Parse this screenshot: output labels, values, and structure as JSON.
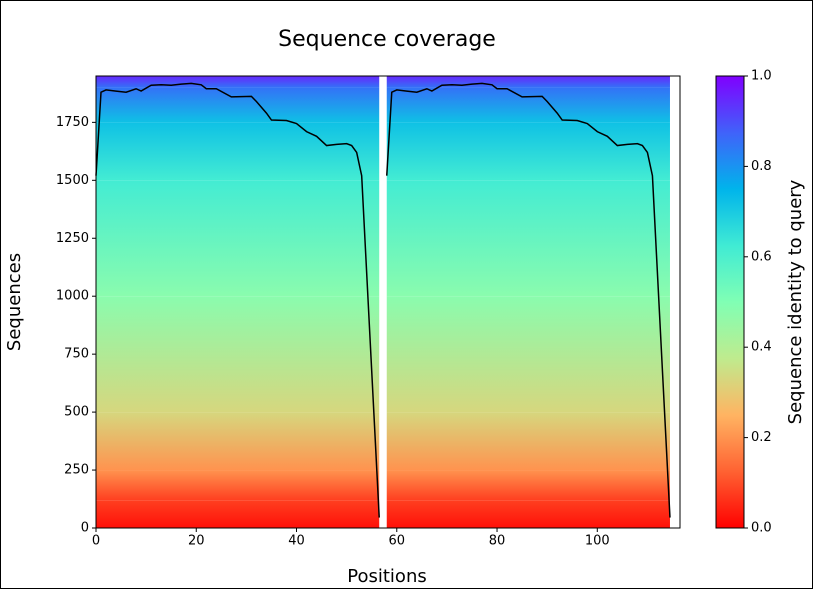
{
  "chart_data": {
    "type": "coverage",
    "title": "Sequence coverage",
    "xlabel": "Positions",
    "ylabel": "Sequences",
    "colorbar_label": "Sequence identity to query",
    "x": [
      0,
      1,
      2,
      4,
      6,
      8,
      9,
      11,
      13,
      15,
      17,
      19,
      21,
      22,
      24,
      27,
      31,
      32,
      34,
      35,
      38,
      40,
      42,
      44,
      46,
      48,
      50,
      51,
      52,
      53,
      56.5,
      57.3,
      58,
      59,
      60,
      62,
      64,
      66,
      67,
      69,
      71,
      73,
      75,
      77,
      79,
      80,
      82,
      85,
      89,
      90,
      92,
      93,
      96,
      98,
      100,
      102,
      104,
      106,
      108,
      109,
      110,
      111,
      114.5
    ],
    "values": [
      1520,
      1880,
      1890,
      1885,
      1880,
      1895,
      1885,
      1910,
      1912,
      1910,
      1915,
      1918,
      1912,
      1895,
      1895,
      1860,
      1862,
      1840,
      1790,
      1760,
      1758,
      1745,
      1710,
      1690,
      1650,
      1655,
      1658,
      1650,
      1620,
      1520,
      45,
      null,
      1520,
      1880,
      1890,
      1885,
      1880,
      1895,
      1885,
      1910,
      1912,
      1910,
      1915,
      1918,
      1912,
      1895,
      1895,
      1860,
      1862,
      1840,
      1790,
      1760,
      1758,
      1745,
      1710,
      1690,
      1650,
      1655,
      1658,
      1650,
      1620,
      1520,
      45
    ],
    "color": "#000000",
    "heatmap": {
      "sequences": [
        0,
        120,
        250,
        500,
        1000,
        1500,
        1750,
        1900,
        1950
      ],
      "identity": [
        0.02,
        0.08,
        0.2,
        0.33,
        0.48,
        0.62,
        0.72,
        0.85,
        0.95
      ]
    },
    "colormap": [
      "#ff0000",
      "#ff6232",
      "#ffb462",
      "#bfeb8e",
      "#80ffb4",
      "#40ebd4",
      "#00b4eb",
      "#4062fa",
      "#8000ff"
    ],
    "xlim": [
      0,
      116.5
    ],
    "ylim": [
      0,
      1950
    ],
    "clim": [
      0,
      1
    ],
    "xticks": [
      0,
      20,
      40,
      60,
      80,
      100
    ],
    "yticks": [
      0,
      250,
      500,
      750,
      1000,
      1250,
      1500,
      1750
    ],
    "cticks": [
      {
        "value": 0,
        "label": "0.0"
      },
      0.2,
      0.4,
      0.6,
      0.8,
      {
        "value": 1,
        "label": "1.0"
      }
    ]
  }
}
